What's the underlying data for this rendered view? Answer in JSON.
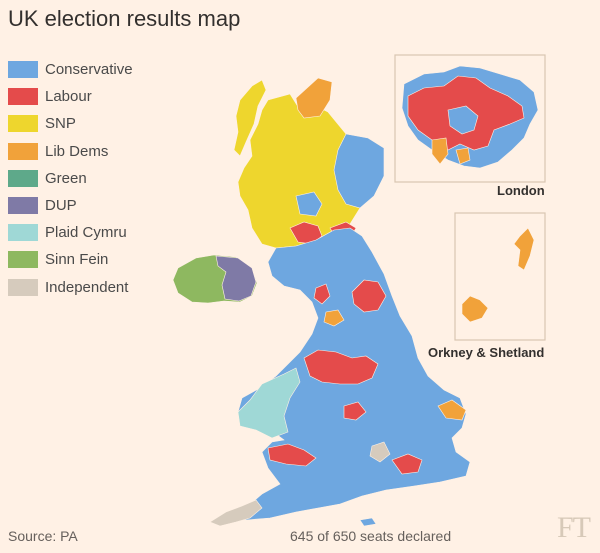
{
  "title": "UK election results map",
  "colors": {
    "background": "#fff1e5",
    "Conservative": "#6ea7e0",
    "Labour": "#e44b4b",
    "SNP": "#eed62d",
    "Lib Dems": "#f1a23a",
    "Green": "#5ea98a",
    "DUP": "#7f7aa6",
    "Plaid Cymru": "#9fd8d6",
    "Sinn Fein": "#8eb860",
    "Independent": "#d6cbbd"
  },
  "legend": [
    {
      "label": "Conservative",
      "color": "#6ea7e0"
    },
    {
      "label": "Labour",
      "color": "#e44b4b"
    },
    {
      "label": "SNP",
      "color": "#eed62d"
    },
    {
      "label": "Lib Dems",
      "color": "#f1a23a"
    },
    {
      "label": "Green",
      "color": "#5ea98a"
    },
    {
      "label": "DUP",
      "color": "#7f7aa6"
    },
    {
      "label": "Plaid Cymru",
      "color": "#9fd8d6"
    },
    {
      "label": "Sinn Fein",
      "color": "#8eb860"
    },
    {
      "label": "Independent",
      "color": "#d6cbbd"
    }
  ],
  "insets": {
    "london": "London",
    "orkney_shetland": "Orkney & Shetland"
  },
  "footer": {
    "source": "Source: PA",
    "status": "645 of 650 seats declared"
  },
  "logo": "FT"
}
